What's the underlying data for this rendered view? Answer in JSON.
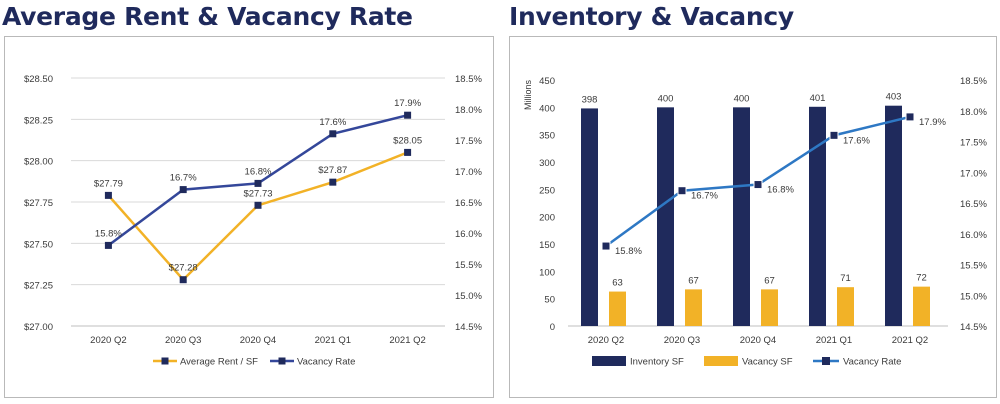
{
  "colors": {
    "navy": "#1f2a5c",
    "line_blue": "#34479a",
    "gold": "#f2b227",
    "light_blue": "#2e78c4",
    "grid": "#d9d9d9",
    "axis_text": "#3a3a3a"
  },
  "titles": {
    "left": "Average Rent & Vacancy Rate",
    "right": "Inventory & Vacancy"
  },
  "chart_data": [
    {
      "type": "line",
      "title": "Average Rent & Vacancy Rate",
      "categories": [
        "2020 Q2",
        "2020 Q3",
        "2020 Q4",
        "2021 Q1",
        "2021 Q2"
      ],
      "left_axis": {
        "ylim": [
          27.0,
          28.5
        ],
        "ticks": [
          27.0,
          27.25,
          27.5,
          27.75,
          28.0,
          28.25,
          28.5
        ],
        "tick_labels": [
          "$27.00",
          "$27.25",
          "$27.50",
          "$27.75",
          "$28.00",
          "$28.25",
          "$28.50"
        ]
      },
      "right_axis": {
        "ylim": [
          14.5,
          18.5
        ],
        "ticks": [
          14.5,
          15.0,
          15.5,
          16.0,
          16.5,
          17.0,
          17.5,
          18.0,
          18.5
        ],
        "tick_labels": [
          "14.5%",
          "15.0%",
          "15.5%",
          "16.0%",
          "16.5%",
          "17.0%",
          "17.5%",
          "18.0%",
          "18.5%"
        ]
      },
      "series": [
        {
          "name": "Average Rent / SF",
          "axis": "left",
          "color": "#f2b227",
          "values": [
            27.79,
            27.28,
            27.73,
            27.87,
            28.05
          ],
          "labels": [
            "$27.79",
            "$27.28",
            "$27.73",
            "$27.87",
            "$28.05"
          ]
        },
        {
          "name": "Vacancy Rate",
          "axis": "right",
          "color": "#34479a",
          "values": [
            15.8,
            16.7,
            16.8,
            17.6,
            17.9
          ],
          "labels": [
            "15.8%",
            "16.7%",
            "16.8%",
            "17.6%",
            "17.9%"
          ]
        }
      ],
      "legend": [
        "Average Rent / SF",
        "Vacancy Rate"
      ],
      "legend_position": "bottom",
      "grid": true
    },
    {
      "type": "bar",
      "title": "Inventory & Vacancy",
      "categories": [
        "2020 Q2",
        "2020 Q3",
        "2020 Q4",
        "2021 Q1",
        "2021 Q2"
      ],
      "ylabel": "Millions",
      "left_axis": {
        "ylim": [
          0,
          450
        ],
        "ticks": [
          0,
          50,
          100,
          150,
          200,
          250,
          300,
          350,
          400,
          450
        ],
        "tick_labels": [
          "0",
          "50",
          "100",
          "150",
          "200",
          "250",
          "300",
          "350",
          "400",
          "450"
        ]
      },
      "right_axis": {
        "ylim": [
          14.5,
          18.5
        ],
        "ticks": [
          14.5,
          15.0,
          15.5,
          16.0,
          16.5,
          17.0,
          17.5,
          18.0,
          18.5
        ],
        "tick_labels": [
          "14.5%",
          "15.0%",
          "15.5%",
          "16.0%",
          "16.5%",
          "17.0%",
          "17.5%",
          "18.0%",
          "18.5%"
        ]
      },
      "series": [
        {
          "name": "Inventory SF",
          "kind": "bar",
          "axis": "left",
          "color": "#1f2a5c",
          "values": [
            398,
            400,
            400,
            401,
            403
          ],
          "labels": [
            "398",
            "400",
            "400",
            "401",
            "403"
          ]
        },
        {
          "name": "Vacancy SF",
          "kind": "bar",
          "axis": "left",
          "color": "#f2b227",
          "values": [
            63,
            67,
            67,
            71,
            72
          ],
          "labels": [
            "63",
            "67",
            "67",
            "71",
            "72"
          ]
        },
        {
          "name": "Vacancy Rate",
          "kind": "line",
          "axis": "right",
          "color": "#2e78c4",
          "values": [
            15.8,
            16.7,
            16.8,
            17.6,
            17.9
          ],
          "labels": [
            "15.8%",
            "16.7%",
            "16.8%",
            "17.6%",
            "17.9%"
          ]
        }
      ],
      "legend": [
        "Inventory SF",
        "Vacancy SF",
        "Vacancy Rate"
      ],
      "legend_position": "bottom",
      "grid": false
    }
  ]
}
